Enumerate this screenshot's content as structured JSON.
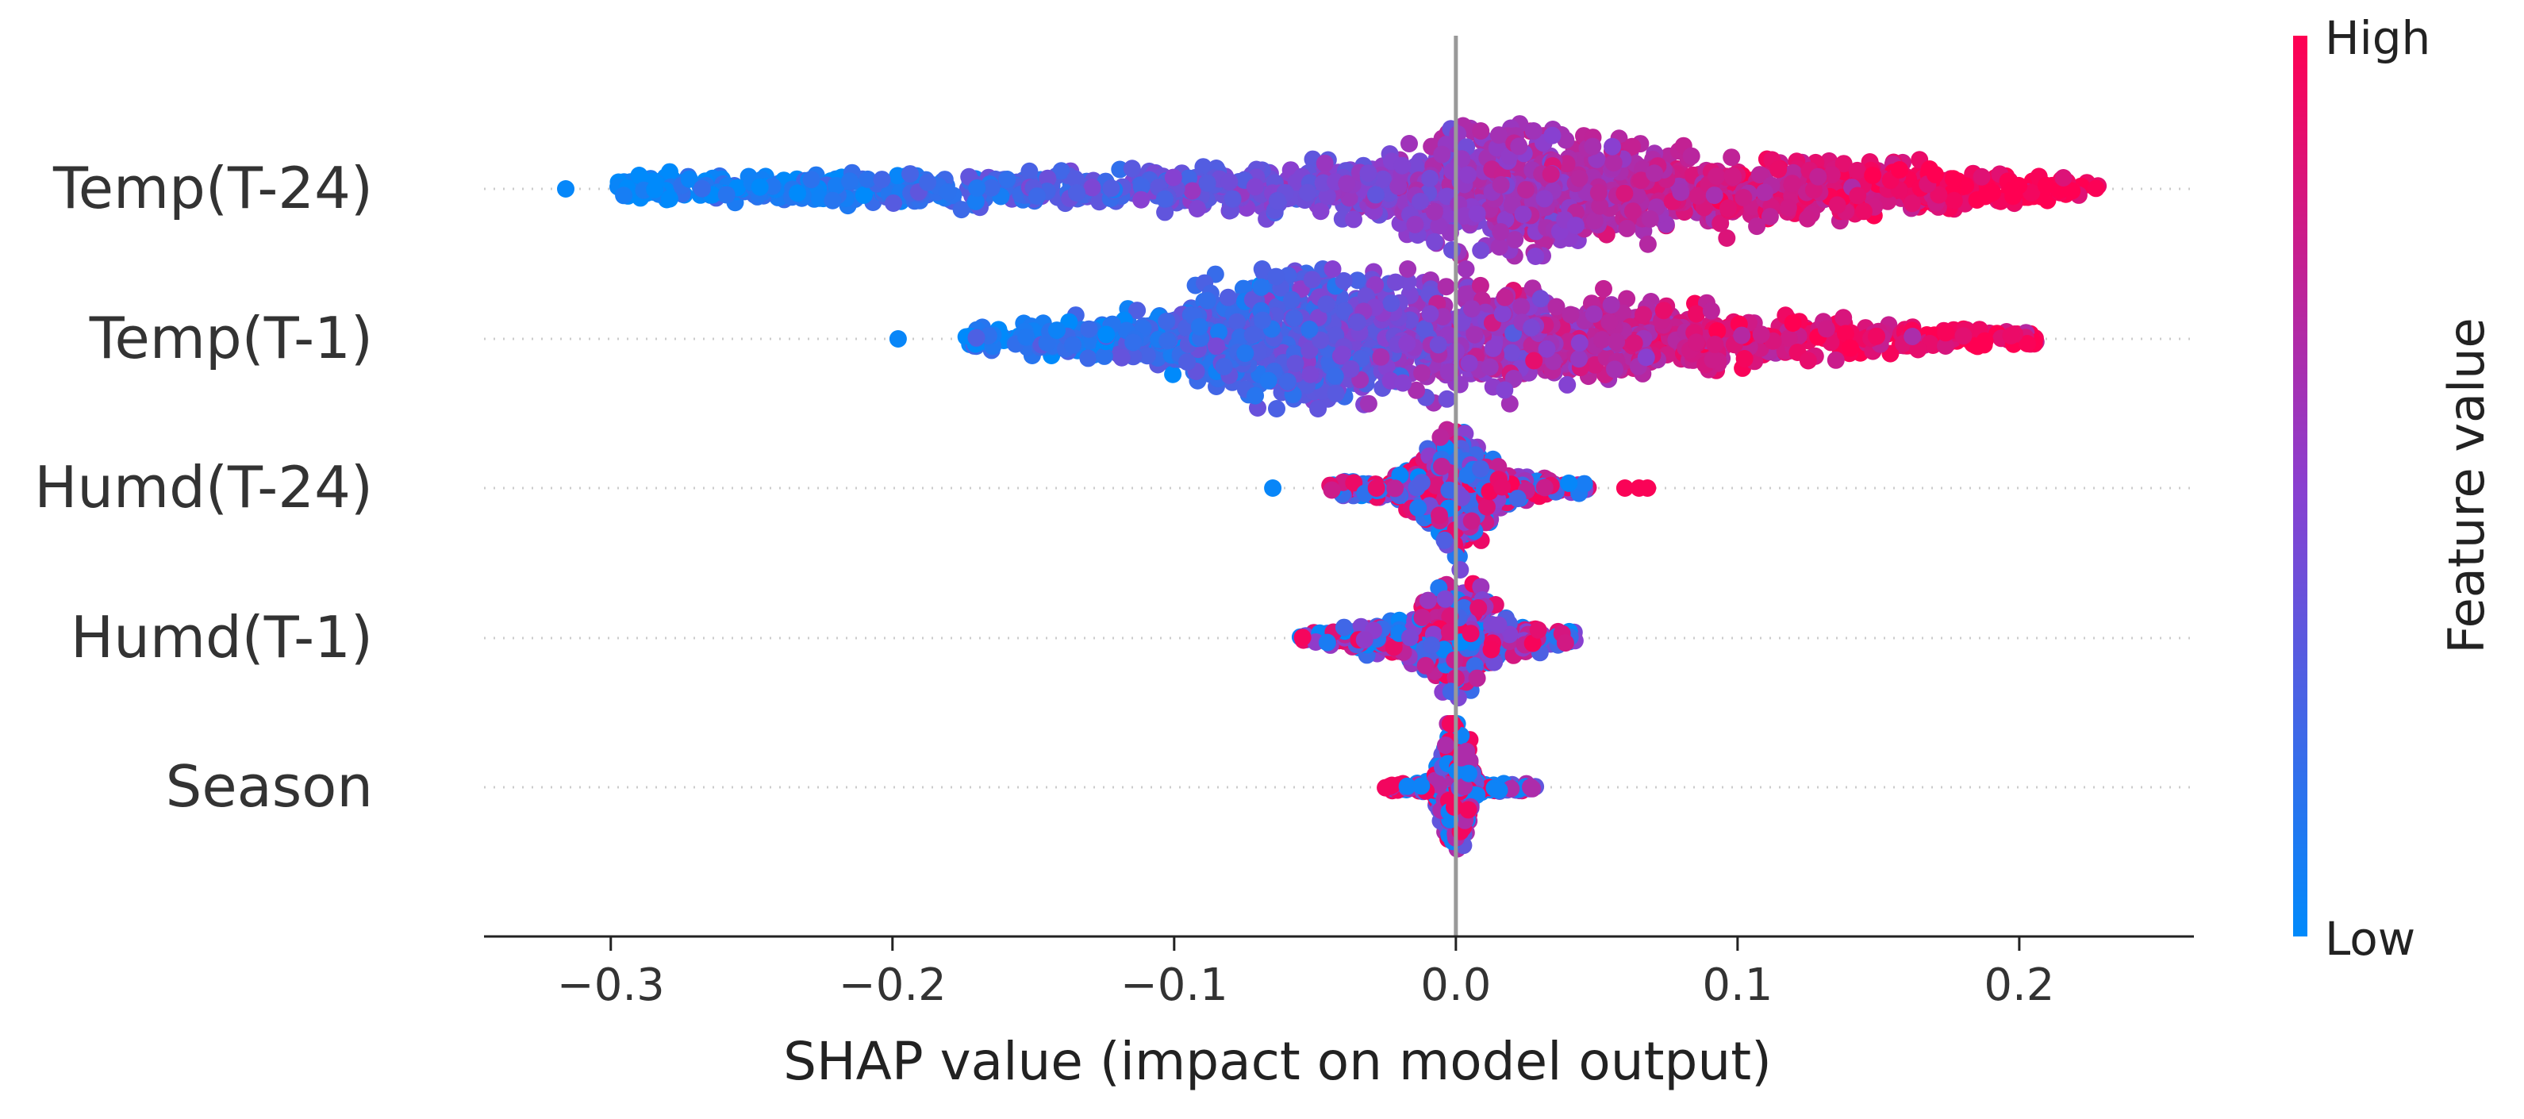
{
  "chart_data": {
    "type": "scatter",
    "subtype": "shap-beeswarm",
    "features": [
      "Temp(T-24)",
      "Temp(T-1)",
      "Humd(T-24)",
      "Humd(T-1)",
      "Season"
    ],
    "xlabel": "SHAP value (impact on model output)",
    "xlim": [
      -0.345,
      0.262
    ],
    "xticks": [
      -0.3,
      -0.2,
      -0.1,
      0.0,
      0.1,
      0.2
    ],
    "xtick_labels": [
      "−0.3",
      "−0.2",
      "−0.1",
      "0.0",
      "0.1",
      "0.2"
    ],
    "zero_line": 0.0,
    "colorbar": {
      "label": "Feature value",
      "high_label": "High",
      "low_label": "Low",
      "low_color": "#008afb",
      "high_color": "#ff0052",
      "mid_color": "#8a3fd0"
    },
    "distributions": [
      {
        "feature": "Temp(T-24)",
        "range": [
          -0.298,
          0.228
        ],
        "outliers": [
          {
            "x": -0.316,
            "v": 0.02
          }
        ],
        "density": [
          [
            -0.3,
            0.18
          ],
          [
            -0.2,
            0.25
          ],
          [
            -0.1,
            0.3
          ],
          [
            -0.03,
            0.45
          ],
          [
            0.0,
            0.95
          ],
          [
            0.02,
            1.0
          ],
          [
            0.05,
            0.8
          ],
          [
            0.1,
            0.5
          ],
          [
            0.15,
            0.4
          ],
          [
            0.2,
            0.25
          ],
          [
            0.23,
            0.15
          ]
        ],
        "color_trend": [
          [
            -0.3,
            0.02
          ],
          [
            -0.2,
            0.15
          ],
          [
            -0.1,
            0.35
          ],
          [
            0.0,
            0.55
          ],
          [
            0.05,
            0.65
          ],
          [
            0.1,
            0.8
          ],
          [
            0.2,
            0.98
          ]
        ],
        "color_jitter": 0.08,
        "n": 1700
      },
      {
        "feature": "Temp(T-1)",
        "range": [
          -0.176,
          0.206
        ],
        "outliers": [
          {
            "x": -0.198,
            "v": 0.03
          }
        ],
        "density": [
          [
            -0.18,
            0.15
          ],
          [
            -0.12,
            0.35
          ],
          [
            -0.08,
            0.8
          ],
          [
            -0.05,
            1.0
          ],
          [
            -0.02,
            0.85
          ],
          [
            0.0,
            0.8
          ],
          [
            0.05,
            0.6
          ],
          [
            0.1,
            0.4
          ],
          [
            0.15,
            0.25
          ],
          [
            0.2,
            0.12
          ]
        ],
        "color_trend": [
          [
            -0.18,
            0.02
          ],
          [
            -0.1,
            0.18
          ],
          [
            -0.05,
            0.3
          ],
          [
            0.0,
            0.55
          ],
          [
            0.05,
            0.7
          ],
          [
            0.1,
            0.85
          ],
          [
            0.2,
            0.98
          ]
        ],
        "color_jitter": 0.1,
        "n": 1700
      },
      {
        "feature": "Humd(T-24)",
        "range": [
          -0.045,
          0.047
        ],
        "outliers": [
          {
            "x": -0.065,
            "v": 0.03
          },
          {
            "x": 0.06,
            "v": 0.98
          },
          {
            "x": 0.065,
            "v": 0.98
          },
          {
            "x": 0.068,
            "v": 0.98
          }
        ],
        "density": [
          [
            -0.045,
            0.08
          ],
          [
            -0.02,
            0.2
          ],
          [
            -0.006,
            0.7
          ],
          [
            0.0,
            1.0
          ],
          [
            0.006,
            0.7
          ],
          [
            0.02,
            0.2
          ],
          [
            0.047,
            0.07
          ]
        ],
        "color_mode": "mixed",
        "n": 700
      },
      {
        "feature": "Humd(T-1)",
        "range": [
          -0.056,
          0.043
        ],
        "outliers": [],
        "density": [
          [
            -0.056,
            0.06
          ],
          [
            -0.02,
            0.25
          ],
          [
            -0.006,
            0.7
          ],
          [
            0.0,
            1.0
          ],
          [
            0.006,
            0.7
          ],
          [
            0.02,
            0.25
          ],
          [
            0.043,
            0.06
          ]
        ],
        "color_mode": "mixed",
        "n": 650
      },
      {
        "feature": "Season",
        "range": [
          -0.025,
          0.03
        ],
        "outliers": [],
        "density": [
          [
            -0.025,
            0.05
          ],
          [
            -0.008,
            0.08
          ],
          [
            -0.002,
            1.0
          ],
          [
            0.002,
            1.0
          ],
          [
            0.008,
            0.08
          ],
          [
            0.03,
            0.05
          ]
        ],
        "color_mode": "season",
        "n": 500
      }
    ]
  }
}
